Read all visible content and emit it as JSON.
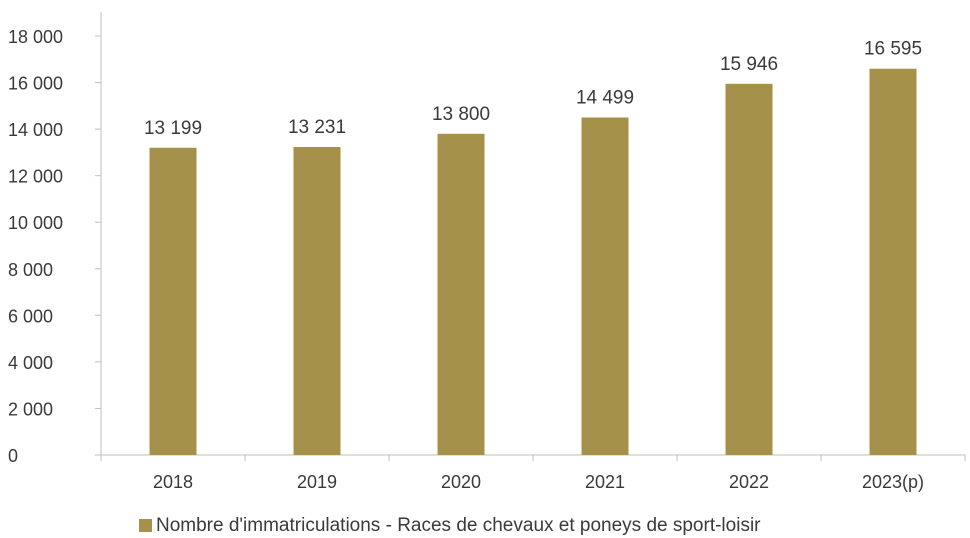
{
  "chart_data": {
    "type": "bar",
    "categories": [
      "2018",
      "2019",
      "2020",
      "2021",
      "2022",
      "2023(p)"
    ],
    "series": [
      {
        "name": "Nombre d'immatriculations - Races de chevaux et poneys de sport-loisir",
        "values": [
          13199,
          13231,
          13800,
          14499,
          15946,
          16595
        ],
        "value_labels": [
          "13 199",
          "13 231",
          "13 800",
          "14 499",
          "15 946",
          "16 595"
        ],
        "color": "#a6914a"
      }
    ],
    "y_ticks": [
      0,
      2000,
      4000,
      6000,
      8000,
      10000,
      12000,
      14000,
      16000,
      18000
    ],
    "y_tick_labels": [
      "0",
      "2 000",
      "4 000",
      "6 000",
      "8 000",
      "10 000",
      "12 000",
      "14 000",
      "16 000",
      "18 000"
    ],
    "ylim": [
      0,
      18000
    ],
    "grid": false,
    "legend_position": "bottom-center",
    "axis_color": "#bfbfbf"
  }
}
